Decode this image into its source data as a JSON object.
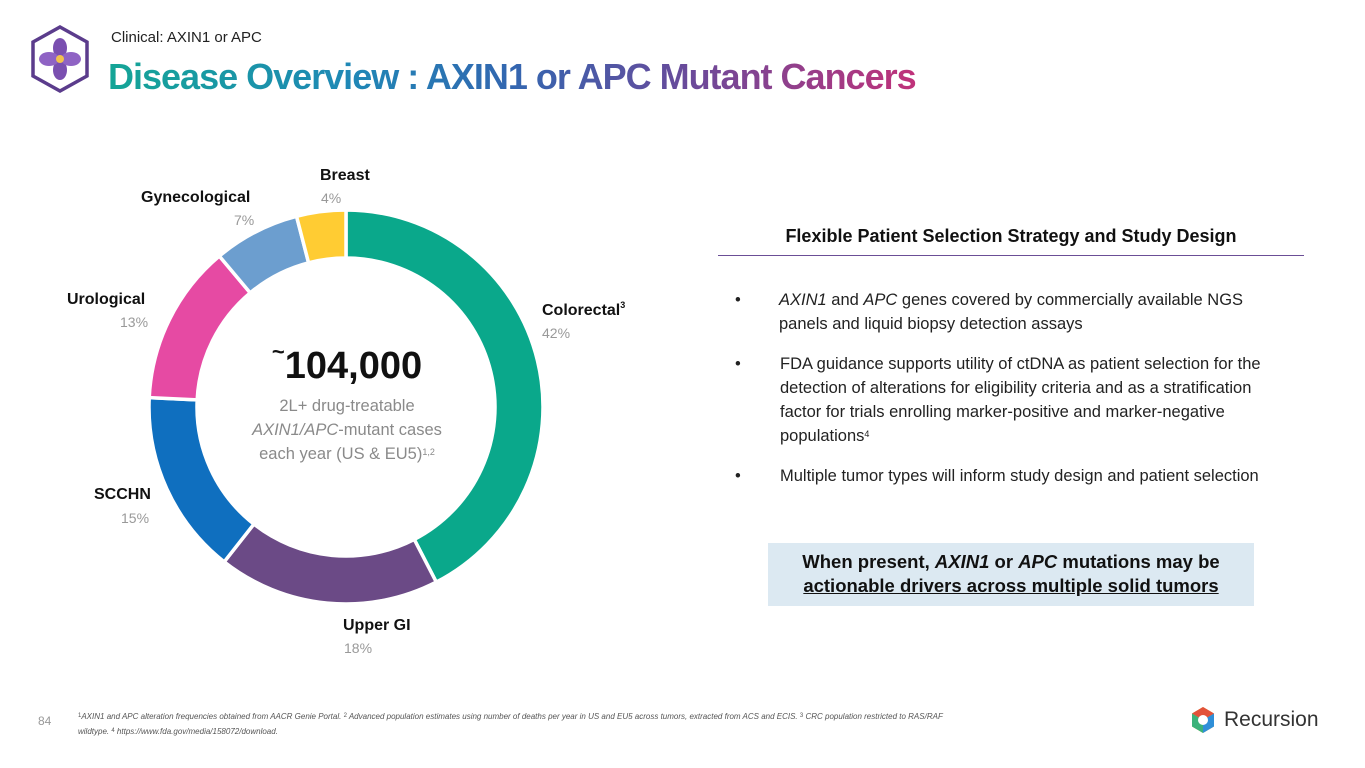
{
  "header": {
    "kicker": "Clinical: AXIN1 or APC",
    "title": "Disease Overview : AXIN1  or APC  Mutant Cancers"
  },
  "chart_data": {
    "type": "pie",
    "variant": "donut",
    "categories": [
      "Colorectal",
      "Upper GI",
      "SCCHN",
      "Urological",
      "Gynecological",
      "Breast"
    ],
    "values": [
      42,
      18,
      15,
      13,
      7,
      4
    ],
    "value_labels": [
      "42%",
      "18%",
      "15%",
      "13%",
      "7%",
      "4%"
    ],
    "colors": [
      "#0aa88b",
      "#6b4a86",
      "#0f6fbf",
      "#e64aa3",
      "#6c9ecf",
      "#ffcc33"
    ],
    "label_superscripts": [
      "3",
      "",
      "",
      "",
      "",
      ""
    ],
    "center": {
      "tilde": "~",
      "value": "104,000",
      "line1": "2L+ drug-treatable",
      "line2_italic": "AXIN1/APC",
      "line2_rest": "-mutant cases",
      "line3": "each year (US & EU5)",
      "line3_sup": "1,2"
    }
  },
  "panel": {
    "title": "Flexible Patient Selection Strategy and Study Design",
    "bullet_char": "•",
    "bullets": [
      {
        "i1": "AXIN1",
        "t1": " and ",
        "i2": "APC",
        "t2": " genes covered by commercially available NGS panels and liquid biopsy detection assays"
      },
      {
        "t1": "FDA guidance supports utility of ctDNA as patient selection for the detection of alterations for eligibility criteria and as a stratification factor for trials enrolling marker-positive and marker-negative populations",
        "sup": "4"
      },
      {
        "t1": "Multiple tumor types will inform study design and patient selection"
      }
    ]
  },
  "callout": {
    "p1": "When present, ",
    "i1": "AXIN1",
    "p2": " or ",
    "i2": "APC",
    "p3": " mutations may be",
    "line2": "actionable drivers across multiple solid tumors"
  },
  "footer": {
    "page_number": "84",
    "fn1_sup": "1",
    "fn1": "AXIN1 and APC alteration frequencies obtained from AACR Genie Portal. ",
    "fn2_sup": "2",
    "fn2": " Advanced population estimates using number of deaths per year in US and EU5 across tumors, extracted from ACS and ECIS. ",
    "fn3_sup": "3",
    "fn3": " CRC population restricted to RAS/RAF wildtype. ",
    "fn4_sup": "4",
    "fn4": " https://www.fda.gov/media/158072/download.",
    "brand_name": "Recursion"
  }
}
